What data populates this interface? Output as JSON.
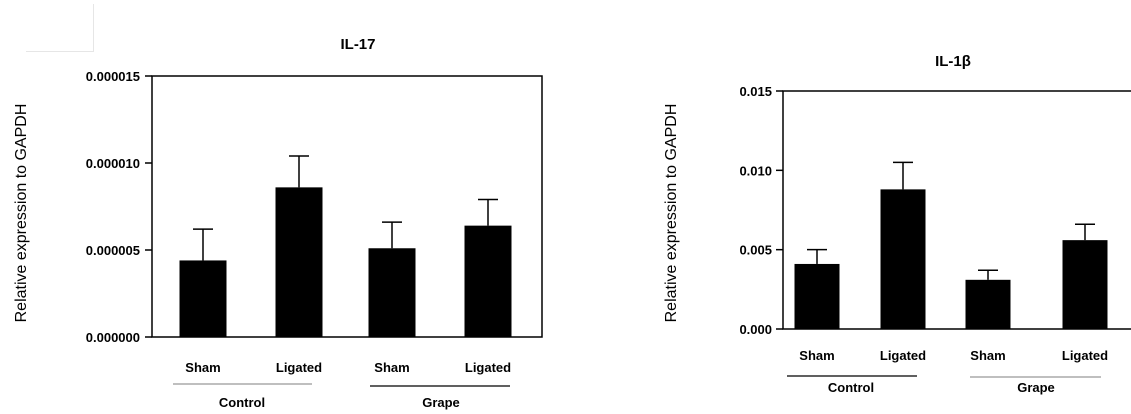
{
  "chart_data": [
    {
      "type": "bar",
      "title": "IL-17",
      "ylabel": "Relative expression to GAPDH",
      "ylim": [
        0,
        1.5e-05
      ],
      "yticks": [
        "0.000000",
        "0.000005",
        "0.000010",
        "0.000015"
      ],
      "categories": [
        "Sham",
        "Ligated",
        "Sham",
        "Ligated"
      ],
      "groups": [
        "Control",
        "Grape"
      ],
      "values": [
        4.4e-06,
        8.6e-06,
        5.1e-06,
        6.4e-06
      ],
      "errors": [
        1.8e-06,
        1.8e-06,
        1.5e-06,
        1.5e-06
      ],
      "bar_color": "#000000"
    },
    {
      "type": "bar",
      "title": "IL-1β",
      "ylabel": "Relative expression to GAPDH",
      "ylim": [
        0,
        0.015
      ],
      "yticks": [
        "0.000",
        "0.005",
        "0.010",
        "0.015"
      ],
      "categories": [
        "Sham",
        "Ligated",
        "Sham",
        "Ligated"
      ],
      "groups": [
        "Control",
        "Grape"
      ],
      "values": [
        0.0041,
        0.0088,
        0.0031,
        0.0056
      ],
      "errors": [
        0.0009,
        0.0017,
        0.0006,
        0.001
      ],
      "bar_color": "#000000"
    }
  ]
}
